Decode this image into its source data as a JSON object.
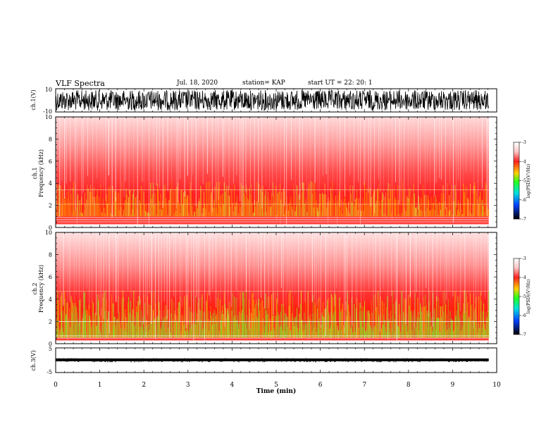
{
  "header": {
    "title": "VLF Spectra",
    "date": "Jul. 18, 2020",
    "station": "station= KAP",
    "start": "start UT =  22: 20: 1"
  },
  "chart_data": [
    {
      "type": "line",
      "ylabel": "ch.1(V)",
      "ylim": [
        -10,
        10
      ],
      "ytick_labels": [
        "10",
        "-10"
      ],
      "description_values": "dense waveform oscillating across full range"
    },
    {
      "type": "heatmap",
      "ylabel": "ch.1\nFrequency (kHz)",
      "ylim": [
        0,
        10
      ],
      "yticks": [
        0,
        2,
        4,
        6,
        8,
        10
      ],
      "colorbar": {
        "label": "log(PSD)(V²/Hz)",
        "ticks": [
          -3,
          -4,
          -5,
          -6,
          -7
        ],
        "range": [
          -7,
          -3
        ]
      }
    },
    {
      "type": "heatmap",
      "ylabel": "ch.2\nFrequency (kHz)",
      "ylim": [
        0,
        10
      ],
      "yticks": [
        0,
        2,
        4,
        6,
        8,
        10
      ],
      "colorbar": {
        "label": "log(PSD)(V²/Hz)",
        "ticks": [
          -3,
          -4,
          -5,
          -6,
          -7
        ],
        "range": [
          -7,
          -3
        ]
      }
    },
    {
      "type": "line",
      "ylabel": "ch.3(V)",
      "ylim": [
        -5,
        5
      ],
      "ytick_labels": [
        "5",
        "-5"
      ]
    }
  ],
  "xaxis": {
    "label": "Time (min)",
    "ticks": [
      "0",
      "1",
      "2",
      "3",
      "4",
      "5",
      "6",
      "7",
      "8",
      "9",
      "10"
    ],
    "range": [
      0,
      10
    ],
    "data_end": 9.82
  },
  "colors": {
    "waveform": "#000000",
    "background": "#ffffff"
  }
}
